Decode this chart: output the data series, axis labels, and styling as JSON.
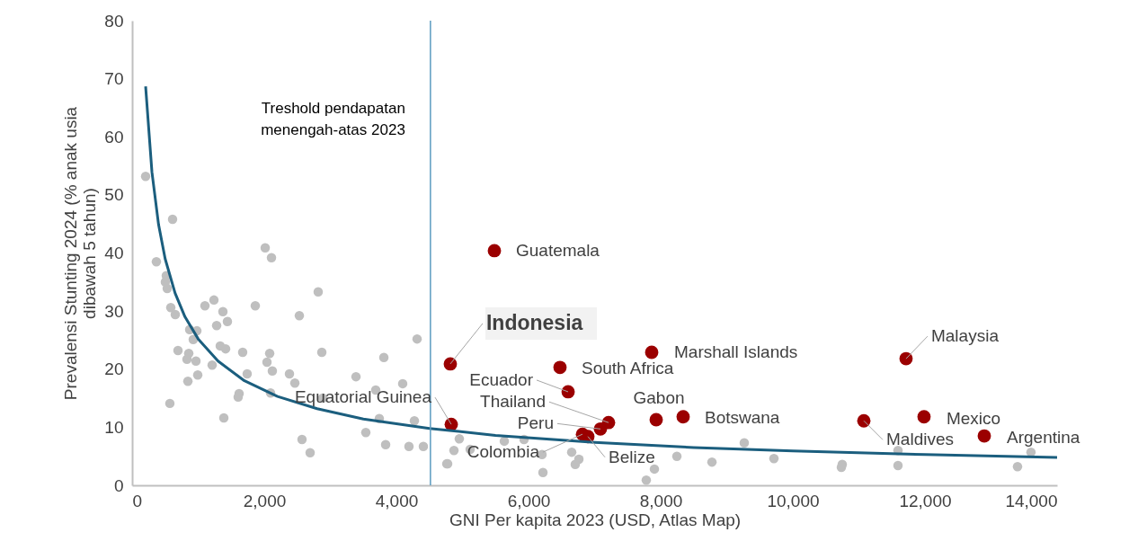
{
  "chart_data": {
    "type": "scatter",
    "xlabel": "GNI Per kapita 2023 (USD, Atlas Map)",
    "ylabel": "Prevalensi Stunting 2024 (% anak usia dibawah 5 tahun)",
    "xlim": [
      0,
      14000
    ],
    "xticks": [
      {
        "value": 0,
        "label": "0"
      },
      {
        "value": 2000,
        "label": "2,000"
      },
      {
        "value": 4000,
        "label": "4,000"
      },
      {
        "value": 6000,
        "label": "6,000"
      },
      {
        "value": 8000,
        "label": "8,000"
      },
      {
        "value": 10000,
        "label": "10,000"
      },
      {
        "value": 12000,
        "label": "12,000"
      },
      {
        "value": 14000,
        "label": "14,000"
      }
    ],
    "ylim": [
      0,
      80
    ],
    "yticks": [
      0,
      10,
      20,
      30,
      40,
      50,
      60,
      70,
      80
    ],
    "grid": false,
    "marker": "circle",
    "series": [
      {
        "color": "#bfbfbf",
        "x": [
          204,
          612,
          2014,
          2109,
          367,
          517,
          503,
          531,
          2816,
          1864,
          585,
          1102,
          1238,
          653,
          1374,
          1442,
          2531,
          1279,
          871,
          980,
          925,
          4313,
          694,
          857,
          830,
          966,
          1333,
          1415,
          1673,
          2082,
          2871,
          3810,
          2041,
          1211,
          2122,
          844,
          993,
          1741,
          2381,
          2463,
          3388,
          4095,
          3687,
          571,
          1619,
          1605,
          2095,
          2884,
          1388,
          3741,
          4272,
          3537,
          2571,
          2694,
          3837,
          4190,
          4408,
          4762,
          4952,
          5633,
          5932,
          4871,
          5116,
          4776,
          6204,
          6218,
          6653,
          6762,
          6707,
          7782,
          7905,
          8245,
          8776,
          9265,
          9714,
          10748,
          10735,
          11592,
          11592,
          13401,
          13605
        ],
        "values": [
          53.2,
          45.8,
          40.9,
          39.2,
          38.5,
          36.1,
          35.0,
          33.9,
          33.3,
          30.9,
          30.6,
          30.9,
          31.9,
          29.4,
          29.9,
          28.2,
          29.2,
          27.5,
          26.8,
          26.6,
          25.1,
          25.2,
          23.2,
          22.7,
          21.7,
          21.4,
          24.0,
          23.5,
          22.9,
          22.7,
          22.9,
          22.0,
          21.2,
          20.7,
          19.7,
          17.9,
          19.0,
          19.2,
          19.2,
          17.6,
          18.7,
          17.5,
          16.4,
          14.1,
          15.8,
          15.2,
          15.9,
          15.0,
          11.6,
          11.5,
          11.1,
          9.1,
          7.9,
          5.6,
          7.0,
          6.7,
          6.7,
          3.7,
          8.0,
          7.6,
          7.9,
          6.0,
          6.2,
          3.7,
          5.3,
          2.2,
          5.7,
          4.5,
          3.6,
          0.9,
          2.8,
          5.0,
          4.0,
          7.3,
          4.6,
          3.6,
          3.1,
          6.0,
          3.4,
          3.2,
          5.7
        ]
      },
      {
        "color": "#9b0000",
        "x": [
          5483,
          4816,
          6476,
          7864,
          6599,
          7211,
          7088,
          6816,
          6898,
          7932,
          8340,
          4830,
          11714,
          11075,
          11986,
          12898
        ],
        "values": [
          40.4,
          20.9,
          20.3,
          22.9,
          16.1,
          10.8,
          9.7,
          8.8,
          8.4,
          11.3,
          11.8,
          10.5,
          21.8,
          11.1,
          11.8,
          8.5
        ]
      },
      {
        "type": "line",
        "marker": "none",
        "color": "#1b5e7e",
        "x": [
          204,
          300,
          400,
          500,
          650,
          800,
          1000,
          1300,
          1700,
          2200,
          2800,
          3500,
          4500,
          5500,
          7000,
          8500,
          10000,
          12000,
          14000
        ],
        "values": [
          68.7,
          53.9,
          44.9,
          39.0,
          33.1,
          29.0,
          25.2,
          21.4,
          18.0,
          15.3,
          13.2,
          11.4,
          9.8,
          8.6,
          7.4,
          6.5,
          5.9,
          5.3,
          4.8
        ]
      }
    ],
    "ref_lines": [
      {
        "axis": "x",
        "value": 4515,
        "label": "Treshold pendapatan\nmenengah-atas 2023",
        "color": "#5b9bc0"
      }
    ],
    "annotations": [
      {
        "text": "Guatemala",
        "x": 5483,
        "y": 40.4
      },
      {
        "text": "Indonesia",
        "x": 4816,
        "y": 20.9
      },
      {
        "text": "South Africa",
        "x": 6476,
        "y": 20.3
      },
      {
        "text": "Marshall Islands",
        "x": 7864,
        "y": 22.9
      },
      {
        "text": "Ecuador",
        "x": 6599,
        "y": 16.1
      },
      {
        "text": "Thailand",
        "x": 7211,
        "y": 10.8
      },
      {
        "text": "Peru",
        "x": 7088,
        "y": 9.7
      },
      {
        "text": "Colombia",
        "x": 6816,
        "y": 8.8
      },
      {
        "text": "Belize",
        "x": 6898,
        "y": 8.4
      },
      {
        "text": "Gabon",
        "x": 7932,
        "y": 11.3
      },
      {
        "text": "Botswana",
        "x": 8340,
        "y": 11.8
      },
      {
        "text": "Equatorial Guinea",
        "x": 4830,
        "y": 10.5
      },
      {
        "text": "Malaysia",
        "x": 11714,
        "y": 21.8
      },
      {
        "text": "Maldives",
        "x": 11075,
        "y": 11.1
      },
      {
        "text": "Mexico",
        "x": 11986,
        "y": 11.8
      },
      {
        "text": "Argentina",
        "x": 12898,
        "y": 8.5
      }
    ]
  }
}
